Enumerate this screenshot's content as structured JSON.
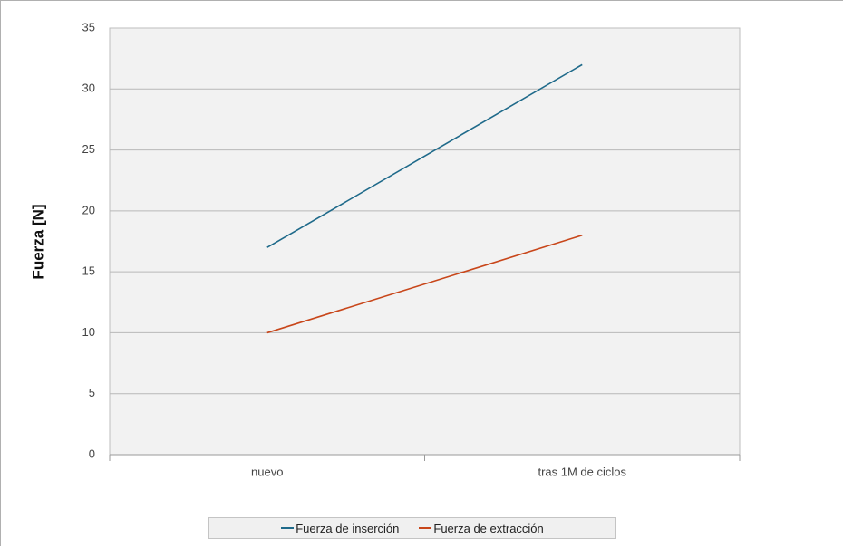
{
  "chart_data": {
    "type": "line",
    "categories": [
      "nuevo",
      "tras 1M de ciclos"
    ],
    "series": [
      {
        "name": "Fuerza de inserción",
        "values": [
          17,
          32
        ],
        "color": "#1f6a8a"
      },
      {
        "name": "Fuerza de extracción",
        "values": [
          10,
          18
        ],
        "color": "#c8461a"
      }
    ],
    "title": "",
    "xlabel": "",
    "ylabel": "Fuerza [N]",
    "ylim": [
      0,
      35
    ],
    "yticks": [
      "0",
      "5",
      "10",
      "15",
      "20",
      "25",
      "30",
      "35"
    ],
    "grid": true,
    "legend_position": "bottom"
  }
}
